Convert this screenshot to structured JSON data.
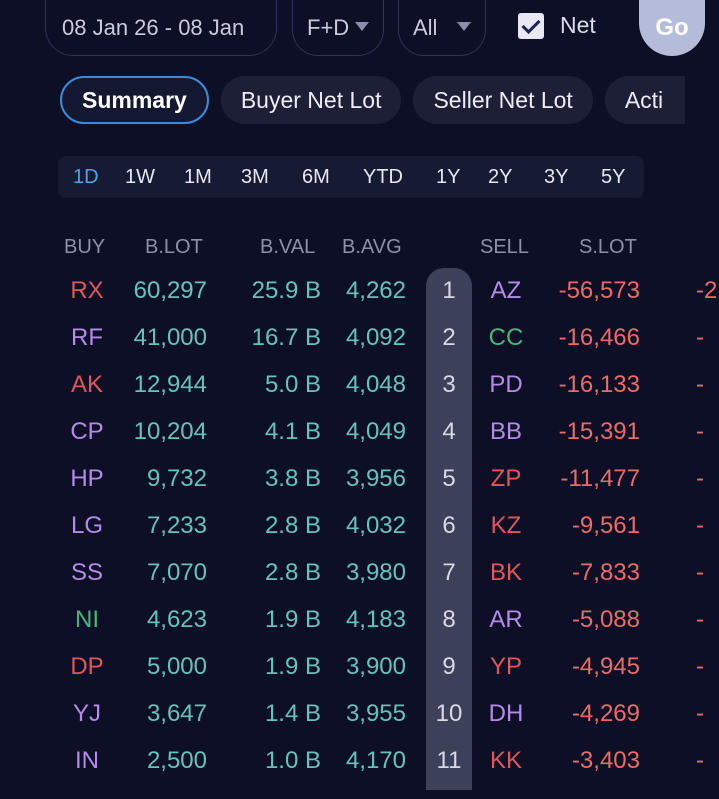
{
  "filters": {
    "date_range": "08 Jan 26 - 08 Jan",
    "market": "F+D",
    "scope": "All",
    "net_label": "Net",
    "net_checked": true,
    "go_label": "Go"
  },
  "tabs": [
    "Summary",
    "Buyer Net Lot",
    "Seller Net Lot",
    "Acti"
  ],
  "periods": [
    "1D",
    "1W",
    "1M",
    "3M",
    "6M",
    "YTD",
    "1Y",
    "2Y",
    "3Y",
    "5Y"
  ],
  "active_period": "1D",
  "table": {
    "headers": {
      "buy": "BUY",
      "blot": "B.LOT",
      "bval": "B.VAL",
      "bavg": "B.AVG",
      "sell": "SELL",
      "slot": "S.LOT"
    },
    "rows": [
      {
        "rank": "1",
        "buy": "RX",
        "buy_color": "#e0575a",
        "blot": "60,297",
        "bval": "25.9 B",
        "bavg": "4,262",
        "sell": "AZ",
        "sell_color": "#b58ae8",
        "slot": "-56,573",
        "sval": "-2"
      },
      {
        "rank": "2",
        "buy": "RF",
        "buy_color": "#b58ae8",
        "blot": "41,000",
        "bval": "16.7 B",
        "bavg": "4,092",
        "sell": "CC",
        "sell_color": "#44b87a",
        "slot": "-16,466",
        "sval": "-"
      },
      {
        "rank": "3",
        "buy": "AK",
        "buy_color": "#e0575a",
        "blot": "12,944",
        "bval": "5.0 B",
        "bavg": "4,048",
        "sell": "PD",
        "sell_color": "#b58ae8",
        "slot": "-16,133",
        "sval": "-"
      },
      {
        "rank": "4",
        "buy": "CP",
        "buy_color": "#b58ae8",
        "blot": "10,204",
        "bval": "4.1 B",
        "bavg": "4,049",
        "sell": "BB",
        "sell_color": "#b58ae8",
        "slot": "-15,391",
        "sval": "-"
      },
      {
        "rank": "5",
        "buy": "HP",
        "buy_color": "#b58ae8",
        "blot": "9,732",
        "bval": "3.8 B",
        "bavg": "3,956",
        "sell": "ZP",
        "sell_color": "#e0575a",
        "slot": "-11,477",
        "sval": "-"
      },
      {
        "rank": "6",
        "buy": "LG",
        "buy_color": "#b58ae8",
        "blot": "7,233",
        "bval": "2.8 B",
        "bavg": "4,032",
        "sell": "KZ",
        "sell_color": "#e0575a",
        "slot": "-9,561",
        "sval": "-"
      },
      {
        "rank": "7",
        "buy": "SS",
        "buy_color": "#b58ae8",
        "blot": "7,070",
        "bval": "2.8 B",
        "bavg": "3,980",
        "sell": "BK",
        "sell_color": "#e0575a",
        "slot": "-7,833",
        "sval": "-"
      },
      {
        "rank": "8",
        "buy": "NI",
        "buy_color": "#44b87a",
        "blot": "4,623",
        "bval": "1.9 B",
        "bavg": "4,183",
        "sell": "AR",
        "sell_color": "#b58ae8",
        "slot": "-5,088",
        "sval": "-"
      },
      {
        "rank": "9",
        "buy": "DP",
        "buy_color": "#e0575a",
        "blot": "5,000",
        "bval": "1.9 B",
        "bavg": "3,900",
        "sell": "YP",
        "sell_color": "#e0575a",
        "slot": "-4,945",
        "sval": "-"
      },
      {
        "rank": "10",
        "buy": "YJ",
        "buy_color": "#b58ae8",
        "blot": "3,647",
        "bval": "1.4 B",
        "bavg": "3,955",
        "sell": "DH",
        "sell_color": "#b58ae8",
        "slot": "-4,269",
        "sval": "-"
      },
      {
        "rank": "11",
        "buy": "IN",
        "buy_color": "#b58ae8",
        "blot": "2,500",
        "bval": "1.0 B",
        "bavg": "4,170",
        "sell": "KK",
        "sell_color": "#e0575a",
        "slot": "-3,403",
        "sval": "-"
      }
    ]
  }
}
